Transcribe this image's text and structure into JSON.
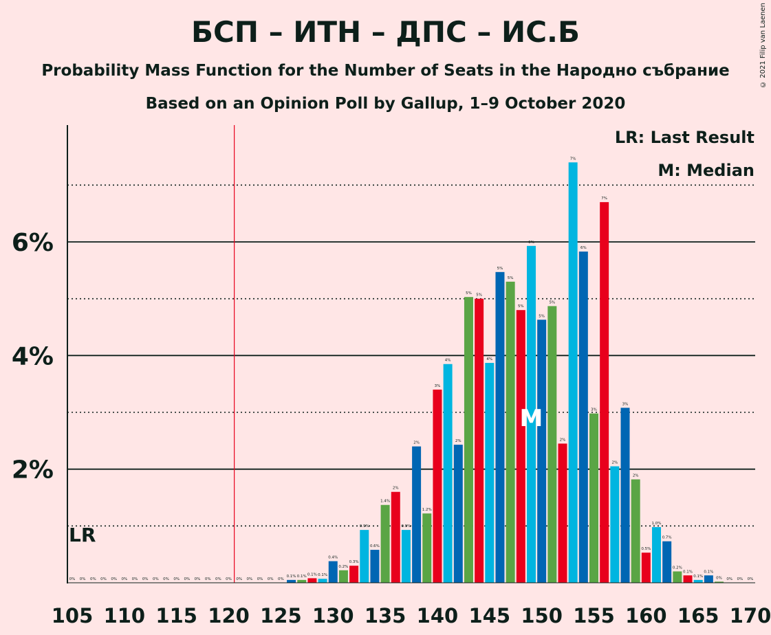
{
  "header": {
    "title": "БСП – ИТН – ДПС – ИС.Б",
    "subtitle": "Probability Mass Function for the Number of Seats in the Народно събрание",
    "subtitle2": "Based on an Opinion Poll by Gallup, 1–9 October 2020",
    "copyright": "© 2021 Filip van Laenen"
  },
  "legend": {
    "last_result": "LR: Last Result",
    "median": "M: Median"
  },
  "markers": {
    "lr_label": "LR",
    "median_label": "M",
    "last_result_seat": 121,
    "median_seat": 149
  },
  "colors": {
    "background": "#ffe6e6",
    "cyan": "#00b5e0",
    "blue": "#0066b3",
    "green": "#5aa545",
    "red": "#e8001c",
    "lr_line": "#e8001c",
    "text": "#0d1f1a"
  },
  "chart_data": {
    "type": "bar",
    "title": "БСП – ИТН – ДПС – ИС.Б",
    "xlabel": "",
    "ylabel": "",
    "ylim": [
      0,
      8
    ],
    "yticks": [
      {
        "value": 2,
        "label": "2%"
      },
      {
        "value": 4,
        "label": "4%"
      },
      {
        "value": 6,
        "label": "6%"
      }
    ],
    "dotted_gridlines": [
      1,
      3,
      5,
      7
    ],
    "xticks": [
      105,
      110,
      115,
      120,
      125,
      130,
      135,
      140,
      145,
      150,
      155,
      160,
      165,
      170
    ],
    "x_start": 105,
    "x_end": 170,
    "color_cycle": [
      "cyan",
      "blue",
      "green",
      "red"
    ],
    "color_cycle_start_seat": 105,
    "bars": [
      {
        "seat": 105,
        "value": 0,
        "label": "0%"
      },
      {
        "seat": 106,
        "value": 0,
        "label": "0%"
      },
      {
        "seat": 107,
        "value": 0,
        "label": "0%"
      },
      {
        "seat": 108,
        "value": 0,
        "label": "0%"
      },
      {
        "seat": 109,
        "value": 0,
        "label": "0%"
      },
      {
        "seat": 110,
        "value": 0,
        "label": "0%"
      },
      {
        "seat": 111,
        "value": 0,
        "label": "0%"
      },
      {
        "seat": 112,
        "value": 0,
        "label": "0%"
      },
      {
        "seat": 113,
        "value": 0,
        "label": "0%"
      },
      {
        "seat": 114,
        "value": 0,
        "label": "0%"
      },
      {
        "seat": 115,
        "value": 0,
        "label": "0%"
      },
      {
        "seat": 116,
        "value": 0,
        "label": "0%"
      },
      {
        "seat": 117,
        "value": 0,
        "label": "0%"
      },
      {
        "seat": 118,
        "value": 0,
        "label": "0%"
      },
      {
        "seat": 119,
        "value": 0,
        "label": "0%"
      },
      {
        "seat": 120,
        "value": 0,
        "label": "0%"
      },
      {
        "seat": 121,
        "value": 0,
        "label": "0%"
      },
      {
        "seat": 122,
        "value": 0,
        "label": "0%"
      },
      {
        "seat": 123,
        "value": 0,
        "label": "0%"
      },
      {
        "seat": 124,
        "value": 0,
        "label": "0%"
      },
      {
        "seat": 125,
        "value": 0,
        "label": "0%"
      },
      {
        "seat": 126,
        "value": 0.05,
        "label": "0.1%"
      },
      {
        "seat": 127,
        "value": 0.05,
        "label": "0.1%"
      },
      {
        "seat": 128,
        "value": 0.08,
        "label": "0.1%"
      },
      {
        "seat": 129,
        "value": 0.07,
        "label": "0.1%"
      },
      {
        "seat": 130,
        "value": 0.38,
        "label": "0.4%"
      },
      {
        "seat": 131,
        "value": 0.22,
        "label": "0.2%"
      },
      {
        "seat": 132,
        "value": 0.3,
        "label": "0.3%"
      },
      {
        "seat": 133,
        "value": 0.93,
        "label": "0.9%"
      },
      {
        "seat": 134,
        "value": 0.58,
        "label": "0.6%"
      },
      {
        "seat": 135,
        "value": 1.37,
        "label": "1.4%"
      },
      {
        "seat": 136,
        "value": 1.6,
        "label": "2%"
      },
      {
        "seat": 137,
        "value": 0.93,
        "label": "0.9%"
      },
      {
        "seat": 138,
        "value": 2.4,
        "label": "2%"
      },
      {
        "seat": 139,
        "value": 1.22,
        "label": "1.2%"
      },
      {
        "seat": 140,
        "value": 3.4,
        "label": "3%"
      },
      {
        "seat": 141,
        "value": 3.85,
        "label": "4%"
      },
      {
        "seat": 142,
        "value": 2.43,
        "label": "2%"
      },
      {
        "seat": 143,
        "value": 5.03,
        "label": "5%"
      },
      {
        "seat": 144,
        "value": 5.0,
        "label": "5%"
      },
      {
        "seat": 145,
        "value": 3.87,
        "label": "4%"
      },
      {
        "seat": 146,
        "value": 5.47,
        "label": "5%"
      },
      {
        "seat": 147,
        "value": 5.3,
        "label": "5%"
      },
      {
        "seat": 148,
        "value": 4.8,
        "label": "5%"
      },
      {
        "seat": 149,
        "value": 5.93,
        "label": "6%"
      },
      {
        "seat": 150,
        "value": 4.63,
        "label": "5%"
      },
      {
        "seat": 151,
        "value": 4.87,
        "label": "5%"
      },
      {
        "seat": 152,
        "value": 2.45,
        "label": "2%"
      },
      {
        "seat": 153,
        "value": 7.4,
        "label": "7%"
      },
      {
        "seat": 154,
        "value": 5.83,
        "label": "6%"
      },
      {
        "seat": 155,
        "value": 2.98,
        "label": "3%"
      },
      {
        "seat": 156,
        "value": 6.7,
        "label": "7%"
      },
      {
        "seat": 157,
        "value": 2.05,
        "label": "2%"
      },
      {
        "seat": 158,
        "value": 3.08,
        "label": "3%"
      },
      {
        "seat": 159,
        "value": 1.82,
        "label": "2%"
      },
      {
        "seat": 160,
        "value": 0.53,
        "label": "0.5%"
      },
      {
        "seat": 161,
        "value": 0.98,
        "label": "1.0%"
      },
      {
        "seat": 162,
        "value": 0.73,
        "label": "0.7%"
      },
      {
        "seat": 163,
        "value": 0.2,
        "label": "0.2%"
      },
      {
        "seat": 164,
        "value": 0.13,
        "label": "0.1%"
      },
      {
        "seat": 165,
        "value": 0.05,
        "label": "0.1%"
      },
      {
        "seat": 166,
        "value": 0.13,
        "label": "0.1%"
      },
      {
        "seat": 167,
        "value": 0.02,
        "label": "0%"
      },
      {
        "seat": 168,
        "value": 0,
        "label": "0%"
      },
      {
        "seat": 169,
        "value": 0,
        "label": "0%"
      },
      {
        "seat": 170,
        "value": 0,
        "label": "0%"
      }
    ]
  }
}
